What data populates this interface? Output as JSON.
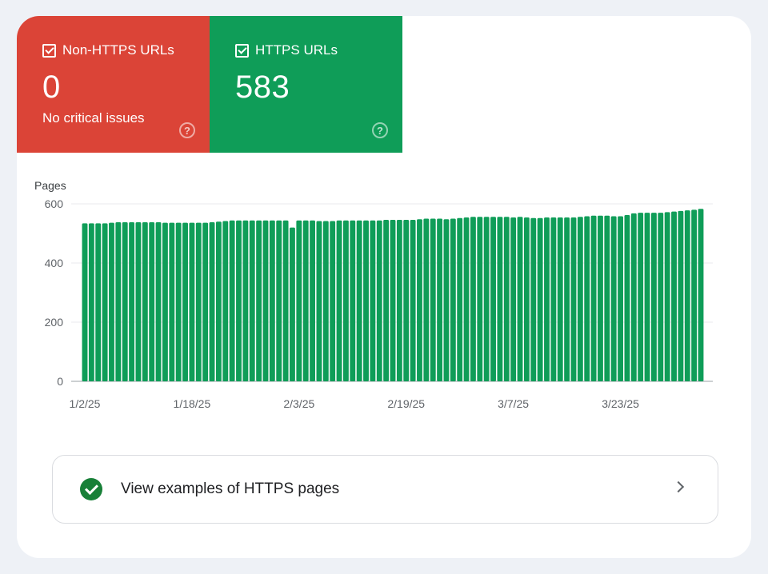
{
  "tiles": {
    "non_https": {
      "label": "Non-HTTPS URLs",
      "value": "0",
      "subtitle": "No critical issues",
      "checked": true,
      "color": "#db4437",
      "help_icon": "help-circle-icon"
    },
    "https": {
      "label": "HTTPS URLs",
      "value": "583",
      "checked": true,
      "color": "#0f9d58",
      "help_icon": "help-circle-icon"
    }
  },
  "chart_data": {
    "type": "bar",
    "ylabel": "Pages",
    "ylim": [
      0,
      600
    ],
    "yticks": [
      "0",
      "200",
      "400",
      "600"
    ],
    "xtick_labels": [
      "1/2/25",
      "1/18/25",
      "2/3/25",
      "2/19/25",
      "3/7/25",
      "3/23/25"
    ],
    "xtick_indices": [
      0,
      16,
      32,
      48,
      64,
      80
    ],
    "grid": true,
    "color": "#0f9d58",
    "series": [
      {
        "values": [
          534,
          534,
          534,
          534,
          536,
          538,
          538,
          538,
          538,
          538,
          538,
          538,
          536,
          536,
          536,
          536,
          536,
          536,
          536,
          538,
          540,
          542,
          544,
          544,
          544,
          544,
          544,
          544,
          544,
          544,
          544,
          520,
          544,
          544,
          544,
          542,
          542,
          542,
          544,
          544,
          544,
          544,
          544,
          544,
          544,
          546,
          546,
          546,
          546,
          546,
          548,
          550,
          550,
          550,
          548,
          550,
          552,
          554,
          556,
          556,
          556,
          556,
          556,
          556,
          554,
          556,
          554,
          552,
          552,
          554,
          554,
          554,
          554,
          554,
          556,
          558,
          560,
          560,
          560,
          558,
          558,
          562,
          568,
          570,
          570,
          570,
          570,
          572,
          574,
          576,
          578,
          580,
          583
        ]
      }
    ]
  },
  "footer": {
    "check_icon": "check-circle-icon",
    "link_label": "View examples of HTTPS pages",
    "chevron_icon": "chevron-right-icon"
  }
}
